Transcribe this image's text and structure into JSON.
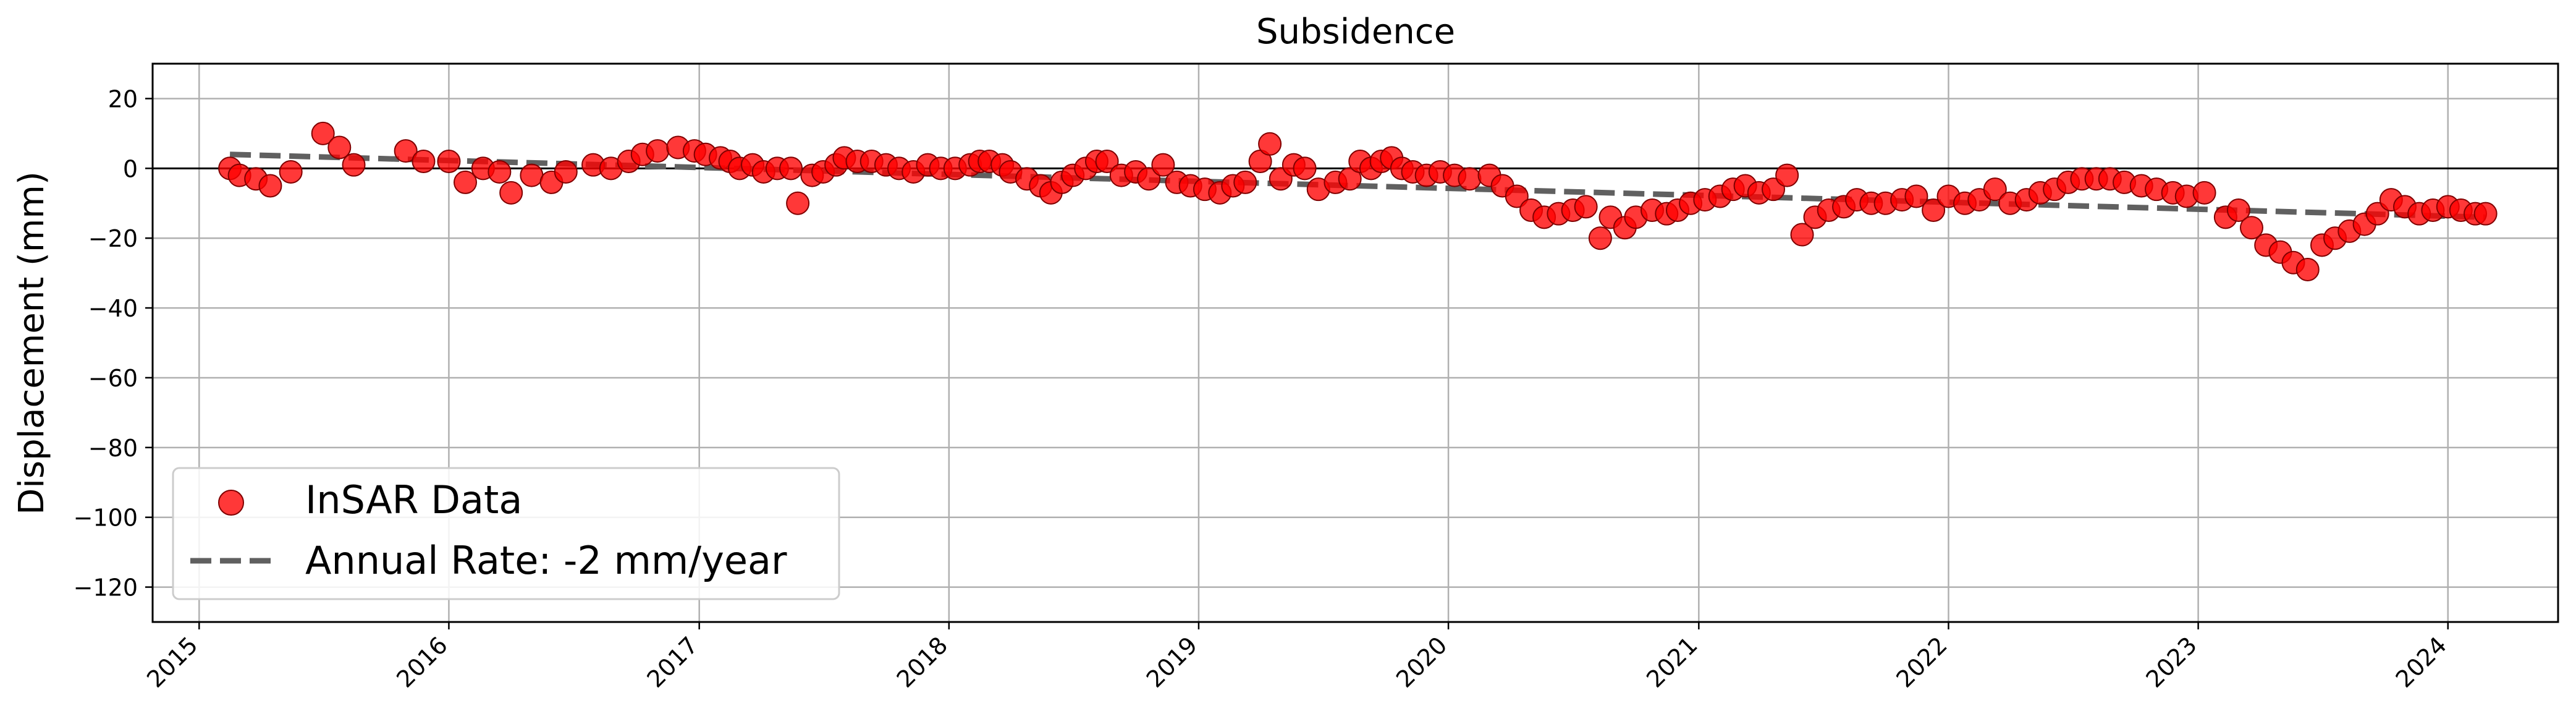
{
  "chart_data": {
    "type": "scatter",
    "title": "Subsidence",
    "xlabel": "",
    "ylabel": "Displacement (mm)",
    "xlim": [
      "2014-10-25",
      "2024-06-10"
    ],
    "ylim": [
      -130,
      30
    ],
    "y_ticks": [
      20,
      0,
      -20,
      -40,
      -60,
      -80,
      -100,
      -120
    ],
    "y_tick_labels": [
      "20",
      "0",
      "−20",
      "−40",
      "−60",
      "−80",
      "−100",
      "−120"
    ],
    "x_ticks": [
      "2015-01-01",
      "2016-01-01",
      "2017-01-01",
      "2018-01-01",
      "2019-01-01",
      "2020-01-01",
      "2021-01-01",
      "2022-01-01",
      "2023-01-01",
      "2024-01-01"
    ],
    "x_tick_labels": [
      "2015",
      "2016",
      "2017",
      "2018",
      "2019",
      "2020",
      "2021",
      "2022",
      "2023",
      "2024"
    ],
    "grid": true,
    "zero_line": true,
    "legend_position": "lower-left",
    "colors": {
      "points": "#ff0000",
      "point_edge": "#800000",
      "trend": "#606060"
    },
    "series": [
      {
        "name": "InSAR Data",
        "kind": "scatter",
        "points": [
          [
            "2015-02-15",
            0
          ],
          [
            "2015-03-01",
            -2
          ],
          [
            "2015-03-25",
            -3
          ],
          [
            "2015-04-15",
            -5
          ],
          [
            "2015-05-15",
            -1
          ],
          [
            "2015-07-01",
            10
          ],
          [
            "2015-07-25",
            6
          ],
          [
            "2015-08-15",
            1
          ],
          [
            "2015-10-30",
            5
          ],
          [
            "2015-11-25",
            2
          ],
          [
            "2016-01-01",
            2
          ],
          [
            "2016-01-25",
            -4
          ],
          [
            "2016-02-20",
            0
          ],
          [
            "2016-03-15",
            -1
          ],
          [
            "2016-04-01",
            -7
          ],
          [
            "2016-05-01",
            -2
          ],
          [
            "2016-05-30",
            -4
          ],
          [
            "2016-06-20",
            -1
          ],
          [
            "2016-07-30",
            1
          ],
          [
            "2016-08-25",
            0
          ],
          [
            "2016-09-20",
            2
          ],
          [
            "2016-10-10",
            4
          ],
          [
            "2016-11-01",
            5
          ],
          [
            "2016-12-01",
            6
          ],
          [
            "2016-12-25",
            5
          ],
          [
            "2017-01-10",
            4
          ],
          [
            "2017-02-01",
            3
          ],
          [
            "2017-02-15",
            2
          ],
          [
            "2017-03-01",
            0
          ],
          [
            "2017-03-20",
            1
          ],
          [
            "2017-04-05",
            -1
          ],
          [
            "2017-04-25",
            0
          ],
          [
            "2017-05-15",
            0
          ],
          [
            "2017-05-25",
            -10
          ],
          [
            "2017-06-15",
            -2
          ],
          [
            "2017-07-01",
            -1
          ],
          [
            "2017-07-20",
            1
          ],
          [
            "2017-08-01",
            3
          ],
          [
            "2017-08-20",
            2
          ],
          [
            "2017-09-10",
            2
          ],
          [
            "2017-10-01",
            1
          ],
          [
            "2017-10-20",
            0
          ],
          [
            "2017-11-10",
            -1
          ],
          [
            "2017-12-01",
            1
          ],
          [
            "2017-12-20",
            0
          ],
          [
            "2018-01-10",
            0
          ],
          [
            "2018-02-01",
            1
          ],
          [
            "2018-02-15",
            2
          ],
          [
            "2018-03-01",
            2
          ],
          [
            "2018-03-20",
            1
          ],
          [
            "2018-04-01",
            -1
          ],
          [
            "2018-04-25",
            -3
          ],
          [
            "2018-05-15",
            -5
          ],
          [
            "2018-05-30",
            -7
          ],
          [
            "2018-06-15",
            -4
          ],
          [
            "2018-07-01",
            -2
          ],
          [
            "2018-07-20",
            0
          ],
          [
            "2018-08-05",
            2
          ],
          [
            "2018-08-20",
            2
          ],
          [
            "2018-09-10",
            -2
          ],
          [
            "2018-10-01",
            -1
          ],
          [
            "2018-10-20",
            -3
          ],
          [
            "2018-11-10",
            1
          ],
          [
            "2018-11-30",
            -4
          ],
          [
            "2018-12-20",
            -5
          ],
          [
            "2019-01-10",
            -6
          ],
          [
            "2019-02-01",
            -7
          ],
          [
            "2019-02-20",
            -5
          ],
          [
            "2019-03-10",
            -4
          ],
          [
            "2019-04-01",
            2
          ],
          [
            "2019-04-15",
            7
          ],
          [
            "2019-05-01",
            -3
          ],
          [
            "2019-05-20",
            1
          ],
          [
            "2019-06-05",
            0
          ],
          [
            "2019-06-25",
            -6
          ],
          [
            "2019-07-20",
            -4
          ],
          [
            "2019-08-10",
            -3
          ],
          [
            "2019-08-25",
            2
          ],
          [
            "2019-09-10",
            0
          ],
          [
            "2019-09-25",
            2
          ],
          [
            "2019-10-10",
            3
          ],
          [
            "2019-10-25",
            0
          ],
          [
            "2019-11-10",
            -1
          ],
          [
            "2019-11-30",
            -2
          ],
          [
            "2019-12-20",
            -1
          ],
          [
            "2020-01-10",
            -2
          ],
          [
            "2020-02-01",
            -3
          ],
          [
            "2020-03-01",
            -2
          ],
          [
            "2020-03-20",
            -5
          ],
          [
            "2020-04-10",
            -8
          ],
          [
            "2020-05-01",
            -12
          ],
          [
            "2020-05-20",
            -14
          ],
          [
            "2020-06-10",
            -13
          ],
          [
            "2020-07-01",
            -12
          ],
          [
            "2020-07-20",
            -11
          ],
          [
            "2020-08-10",
            -20
          ],
          [
            "2020-08-25",
            -14
          ],
          [
            "2020-09-15",
            -17
          ],
          [
            "2020-10-01",
            -14
          ],
          [
            "2020-10-25",
            -12
          ],
          [
            "2020-11-15",
            -13
          ],
          [
            "2020-12-01",
            -12
          ],
          [
            "2020-12-20",
            -10
          ],
          [
            "2021-01-10",
            -9
          ],
          [
            "2021-02-01",
            -8
          ],
          [
            "2021-02-20",
            -6
          ],
          [
            "2021-03-10",
            -5
          ],
          [
            "2021-03-30",
            -7
          ],
          [
            "2021-04-20",
            -6
          ],
          [
            "2021-05-10",
            -2
          ],
          [
            "2021-06-01",
            -19
          ],
          [
            "2021-06-20",
            -14
          ],
          [
            "2021-07-10",
            -12
          ],
          [
            "2021-08-01",
            -11
          ],
          [
            "2021-08-20",
            -9
          ],
          [
            "2021-09-10",
            -10
          ],
          [
            "2021-10-01",
            -10
          ],
          [
            "2021-10-25",
            -9
          ],
          [
            "2021-11-15",
            -8
          ],
          [
            "2021-12-10",
            -12
          ],
          [
            "2022-01-01",
            -8
          ],
          [
            "2022-01-25",
            -10
          ],
          [
            "2022-02-15",
            -9
          ],
          [
            "2022-03-10",
            -6
          ],
          [
            "2022-04-01",
            -10
          ],
          [
            "2022-04-25",
            -9
          ],
          [
            "2022-05-15",
            -7
          ],
          [
            "2022-06-05",
            -6
          ],
          [
            "2022-06-25",
            -4
          ],
          [
            "2022-07-15",
            -3
          ],
          [
            "2022-08-05",
            -3
          ],
          [
            "2022-08-25",
            -3
          ],
          [
            "2022-09-15",
            -4
          ],
          [
            "2022-10-10",
            -5
          ],
          [
            "2022-11-01",
            -6
          ],
          [
            "2022-11-25",
            -7
          ],
          [
            "2022-12-15",
            -8
          ],
          [
            "2023-01-10",
            -7
          ],
          [
            "2023-02-10",
            -14
          ],
          [
            "2023-03-01",
            -12
          ],
          [
            "2023-03-20",
            -17
          ],
          [
            "2023-04-10",
            -22
          ],
          [
            "2023-05-01",
            -24
          ],
          [
            "2023-05-20",
            -27
          ],
          [
            "2023-06-10",
            -29
          ],
          [
            "2023-07-01",
            -22
          ],
          [
            "2023-07-20",
            -20
          ],
          [
            "2023-08-10",
            -18
          ],
          [
            "2023-09-01",
            -16
          ],
          [
            "2023-09-20",
            -13
          ],
          [
            "2023-10-10",
            -9
          ],
          [
            "2023-10-30",
            -11
          ],
          [
            "2023-11-20",
            -13
          ],
          [
            "2023-12-10",
            -12
          ],
          [
            "2024-01-01",
            -11
          ],
          [
            "2024-01-20",
            -12
          ],
          [
            "2024-02-10",
            -13
          ],
          [
            "2024-02-25",
            -13
          ]
        ]
      },
      {
        "name": "Annual Rate: -2 mm/year",
        "kind": "trend-line",
        "points": [
          [
            "2015-02-15",
            4
          ],
          [
            "2024-02-25",
            -14
          ]
        ]
      }
    ]
  }
}
